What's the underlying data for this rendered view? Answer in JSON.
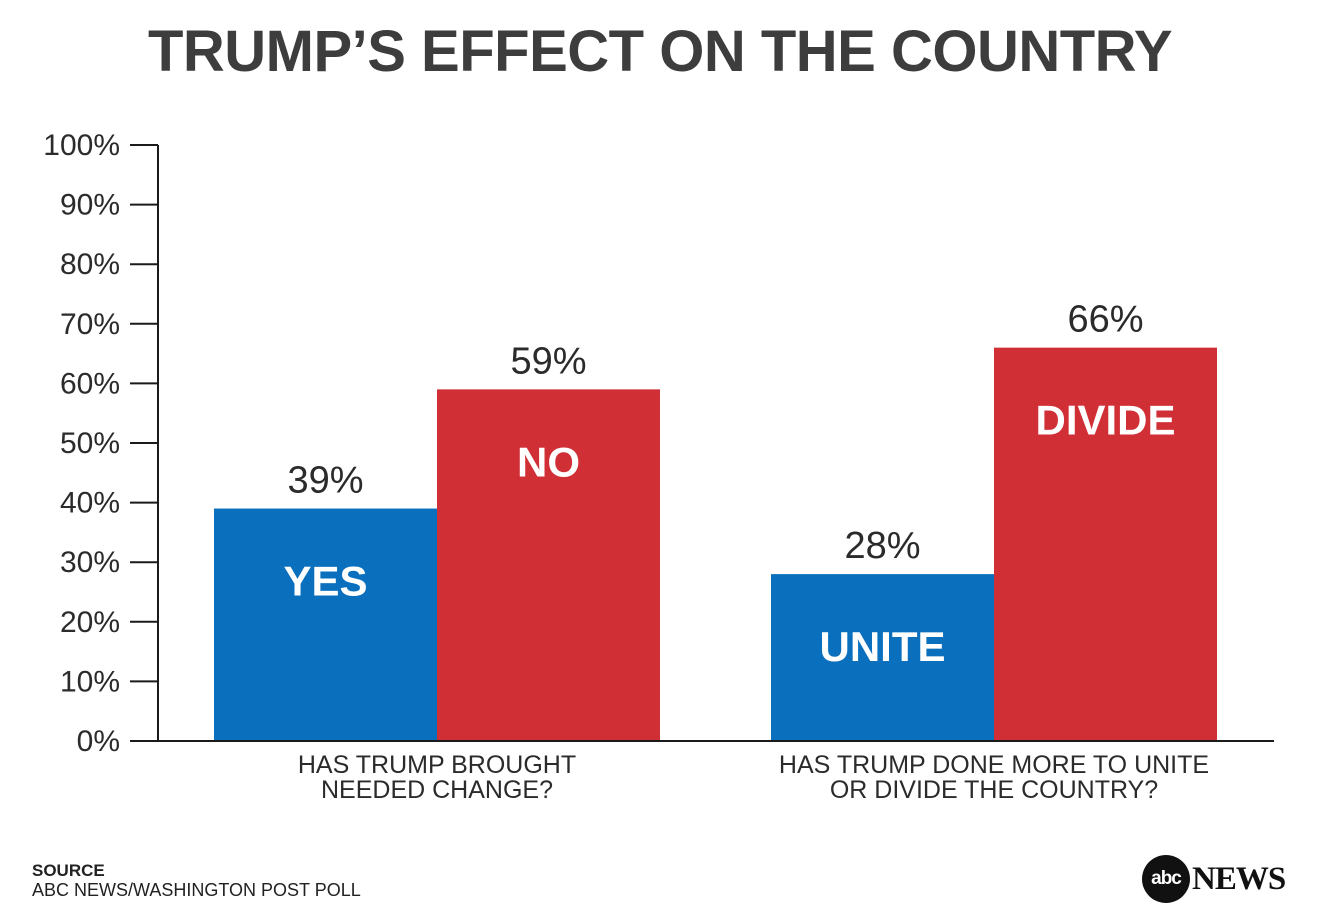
{
  "chart_data": {
    "type": "bar",
    "title": "TRUMP’S EFFECT ON THE COUNTRY",
    "ylim": [
      0,
      100
    ],
    "yticks": [
      "0%",
      "10%",
      "20%",
      "30%",
      "40%",
      "50%",
      "60%",
      "70%",
      "80%",
      "90%",
      "100%"
    ],
    "groups": [
      {
        "category_lines": [
          "HAS TRUMP BROUGHT",
          "NEEDED CHANGE?"
        ],
        "bars": [
          {
            "name": "YES",
            "value": 39,
            "label": "39%",
            "color": "#0a70be"
          },
          {
            "name": "NO",
            "value": 59,
            "label": "59%",
            "color": "#d12f36"
          }
        ]
      },
      {
        "category_lines": [
          "HAS TRUMP DONE MORE TO UNITE",
          "OR DIVIDE THE COUNTRY?"
        ],
        "bars": [
          {
            "name": "UNITE",
            "value": 28,
            "label": "28%",
            "color": "#0a70be"
          },
          {
            "name": "DIVIDE",
            "value": 66,
            "label": "66%",
            "color": "#d12f36"
          }
        ]
      }
    ]
  },
  "source": {
    "label": "SOURCE",
    "text": "ABC NEWS/WASHINGTON POST POLL"
  },
  "logo": {
    "mark": "abc",
    "word": "NEWS"
  }
}
